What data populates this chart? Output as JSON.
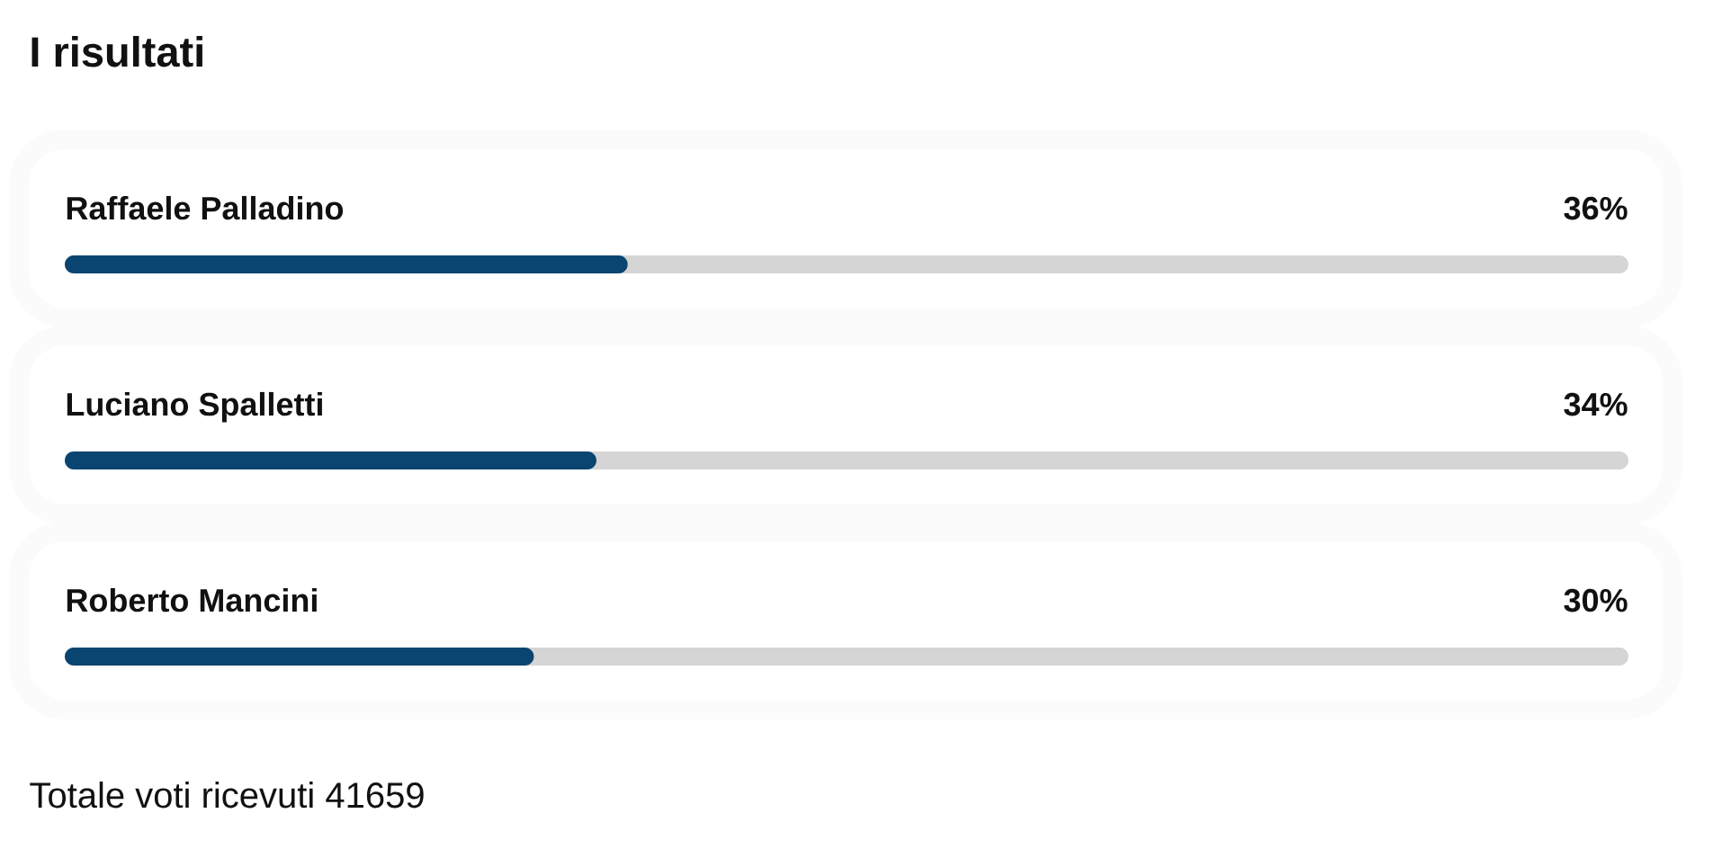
{
  "chart_data": {
    "type": "bar",
    "orientation": "horizontal",
    "title": "I risultati",
    "categories": [
      "Raffaele Palladino",
      "Luciano Spalletti",
      "Roberto Mancini"
    ],
    "values": [
      36,
      34,
      30
    ],
    "value_labels": [
      "36%",
      "34%",
      "30%"
    ],
    "color": "#0a4470",
    "xlim": [
      0,
      100
    ],
    "tick_labels": "y",
    "annotations": [
      "Totale voti ricevuti 41659"
    ]
  }
}
